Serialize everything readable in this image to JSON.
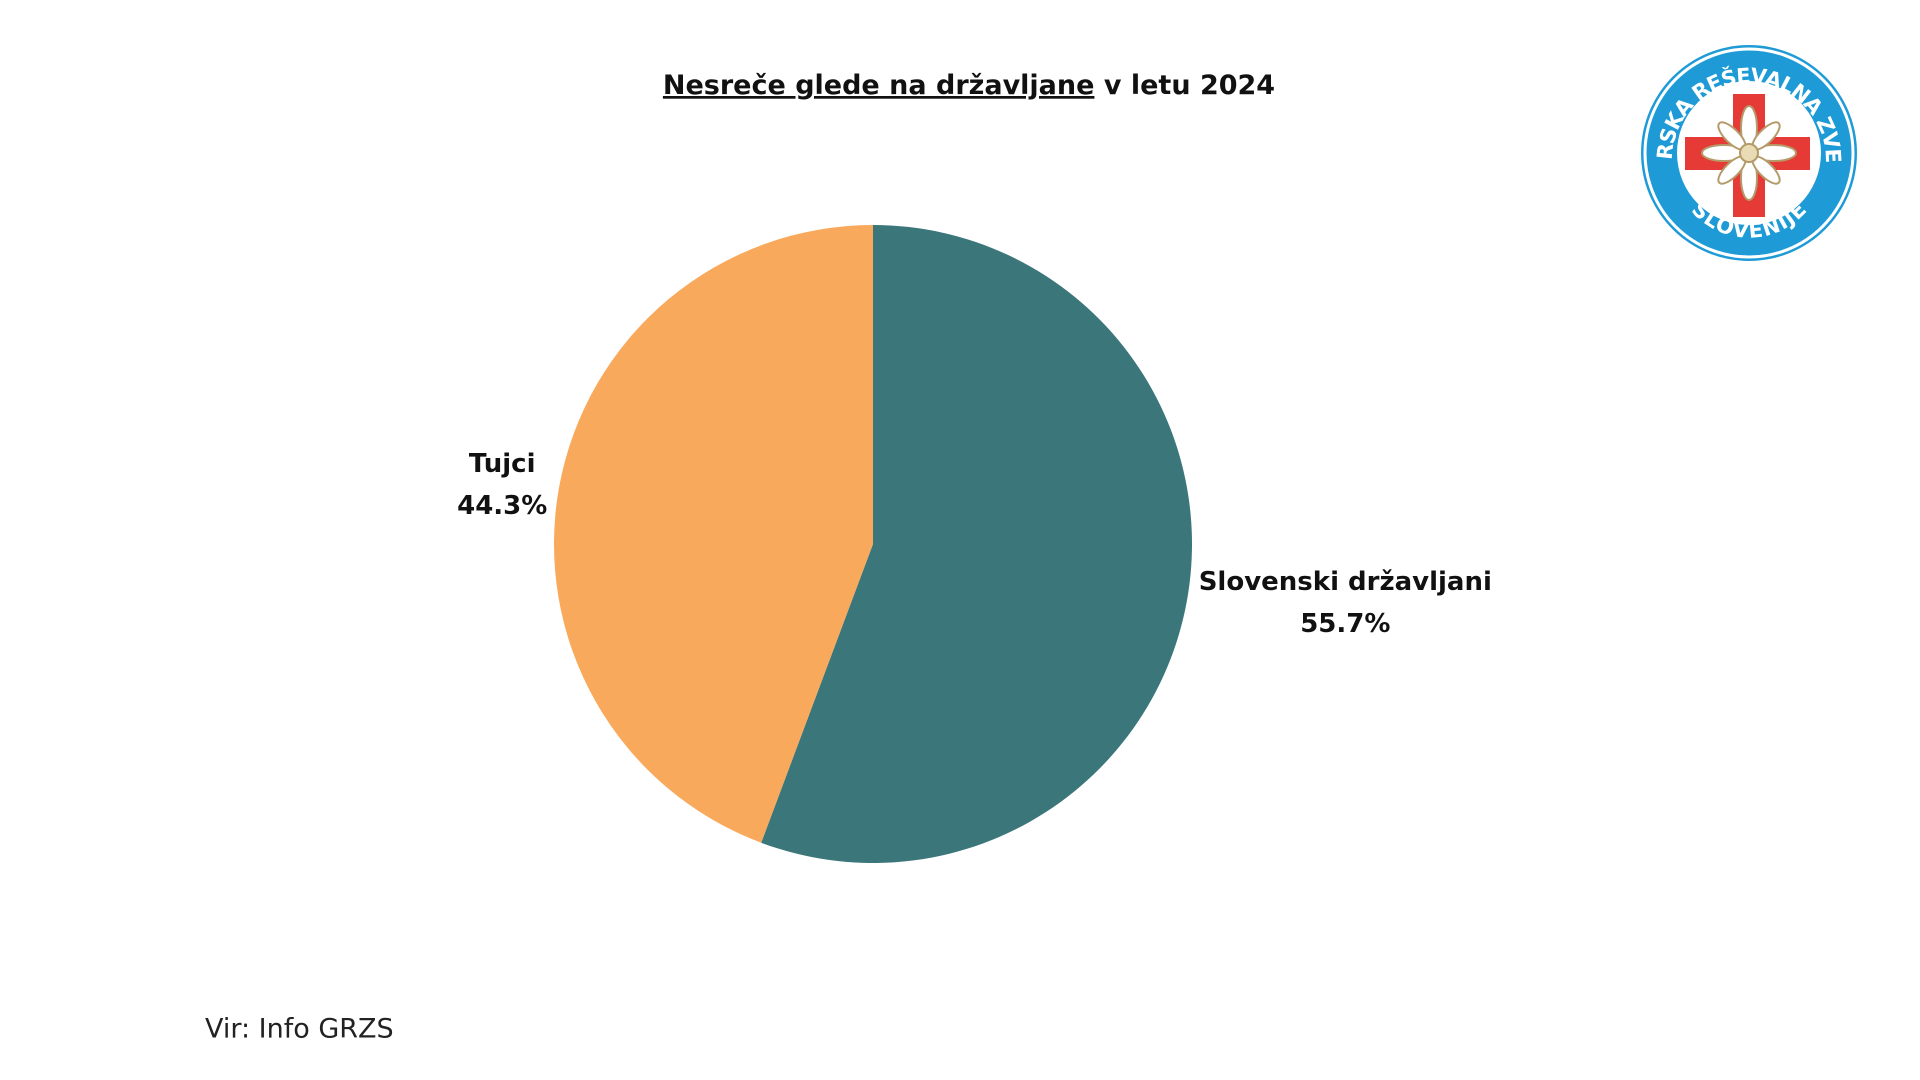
{
  "chart_data": {
    "type": "pie",
    "title": [
      "Nesreče glede na državljane",
      "v letu 2024"
    ],
    "categories": [
      "Slovenski državljani",
      "Tujci"
    ],
    "values": [
      55.7,
      44.3
    ],
    "value_labels": [
      "55.7%",
      "44.3%"
    ],
    "colors": [
      "#3b777a",
      "#f9a95c"
    ],
    "source": "Vir: Info GRZS"
  },
  "logo": {
    "top": "GORSKA REŠEVALNA ZVEZA",
    "bottom": "SLOVENIJE"
  }
}
